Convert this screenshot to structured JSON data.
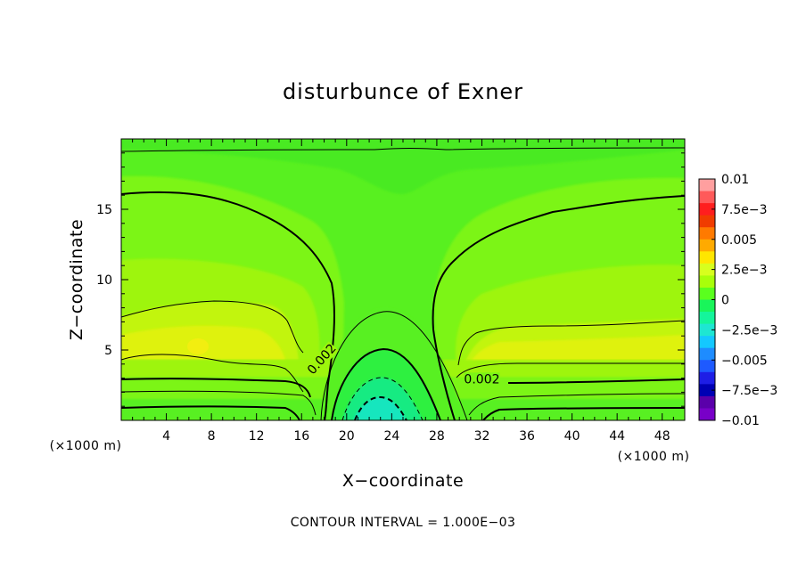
{
  "chart_data": {
    "type": "contour",
    "title": "disturbunce of Exner",
    "xlabel": "X−coordinate",
    "ylabel": "Z−coordinate",
    "x_unit": "(×1000 m)",
    "y_unit": "(×1000 m)",
    "xlim": [
      0,
      50
    ],
    "ylim": [
      0,
      20
    ],
    "x_ticks": [
      4,
      8,
      12,
      16,
      20,
      24,
      28,
      32,
      36,
      40,
      44,
      48
    ],
    "y_ticks": [
      5,
      10,
      15
    ],
    "contour_interval_text": "CONTOUR INTERVAL = 1.000E−03",
    "contour_labels": [
      {
        "text": "0.002",
        "x": 18,
        "z": 4.2
      },
      {
        "text": "0.002",
        "x": 32,
        "z": 2.7
      }
    ],
    "colorbar": {
      "labels": [
        "0.01",
        "7.5e−3",
        "0.005",
        "2.5e−3",
        "0",
        "−2.5e−3",
        "−0.005",
        "−7.5e−3",
        "−0.01"
      ],
      "colors": [
        "#ff9f9f",
        "#ff5a5a",
        "#ff1e1e",
        "#f03c00",
        "#ff7a00",
        "#ffaa00",
        "#ffe600",
        "#d7ff1e",
        "#a8ff0a",
        "#5aff1e",
        "#19f55a",
        "#14f59b",
        "#1ee6d2",
        "#14c8ff",
        "#1e8cff",
        "#1e5aff",
        "#1e1ee6",
        "#0000b4",
        "#5a00aa",
        "#7800c8"
      ]
    }
  }
}
